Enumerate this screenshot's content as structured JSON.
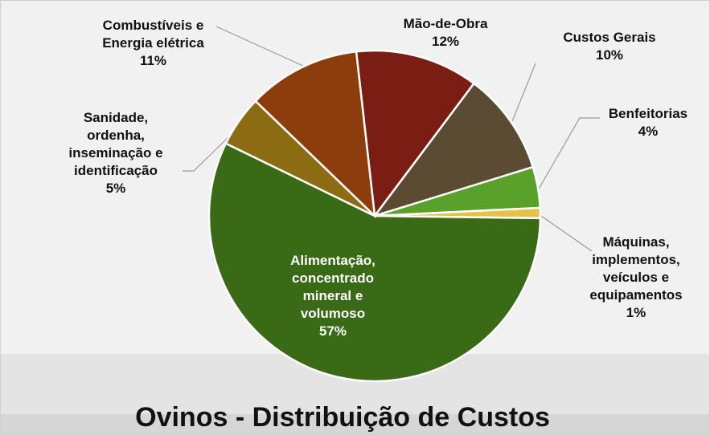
{
  "chart_data": {
    "type": "pie",
    "title": "Ovinos - Distribuição de Custos",
    "categories": [
      "Mão-de-Obra",
      "Custos Gerais",
      "Benfeitorias",
      "Máquinas, implementos, veículos e equipamentos",
      "Alimentação, concentrado mineral e volumoso",
      "Sanidade, ordenha, inseminação e identificação",
      "Combustíveis e Energia elétrica"
    ],
    "values": [
      12,
      10,
      4,
      1,
      57,
      5,
      11
    ],
    "value_labels": [
      "12%",
      "10%",
      "4%",
      "1%",
      "57%",
      "5%",
      "11%"
    ],
    "colors": [
      "#7a1d12",
      "#5b4b33",
      "#5aa12c",
      "#e6c24a",
      "#396a15",
      "#8b6c13",
      "#8d3d0c"
    ]
  }
}
